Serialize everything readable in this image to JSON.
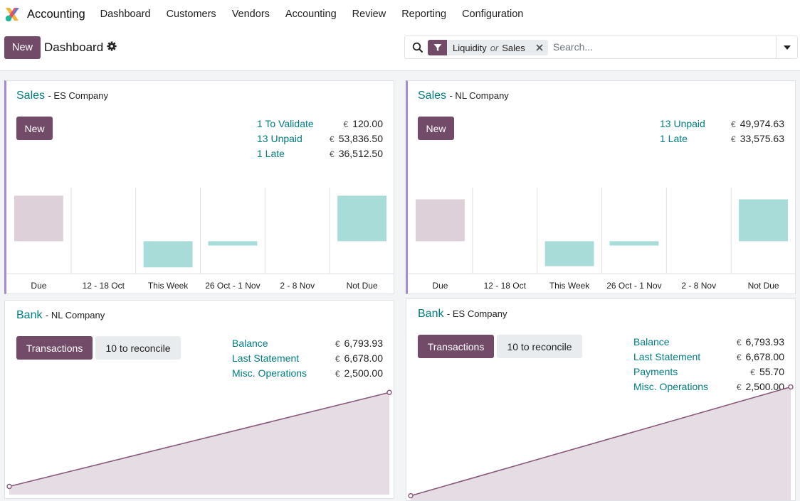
{
  "app": {
    "title": "Accounting",
    "menu": [
      "Dashboard",
      "Customers",
      "Vendors",
      "Accounting",
      "Review",
      "Reporting",
      "Configuration"
    ]
  },
  "control": {
    "new_label": "New",
    "page_title": "Dashboard",
    "search": {
      "facet_values": [
        "Liquidity",
        "Sales"
      ],
      "facet_separator": "or",
      "placeholder": "Search..."
    }
  },
  "colors": {
    "brand": "#714b67",
    "link": "#017e84",
    "accent_border": "#a58ad8",
    "bar_past": "#ddd0d8",
    "bar_future": "#a8dcd8",
    "line": "#875a7b",
    "area": "#e6dde4"
  },
  "cards": {
    "sales_es": {
      "title": "Sales",
      "company": "- ES Company",
      "button": "New",
      "stats": [
        {
          "label": "1 To Validate",
          "currency": "€",
          "value": "120.00"
        },
        {
          "label": "13 Unpaid",
          "currency": "€",
          "value": "53,836.50"
        },
        {
          "label": "1 Late",
          "currency": "€",
          "value": "36,512.50"
        }
      ]
    },
    "sales_nl": {
      "title": "Sales",
      "company": "- NL Company",
      "button": "New",
      "stats": [
        {
          "label": "13 Unpaid",
          "currency": "€",
          "value": "49,974.63"
        },
        {
          "label": "1 Late",
          "currency": "€",
          "value": "33,575.63"
        }
      ]
    },
    "bank_nl": {
      "title": "Bank",
      "company": "- NL Company",
      "primary_button": "Transactions",
      "secondary_button": "10 to reconcile",
      "stats": [
        {
          "label": "Balance",
          "currency": "€",
          "value": "6,793.93"
        },
        {
          "label": "Last Statement",
          "currency": "€",
          "value": "6,678.00"
        },
        {
          "label": "Misc. Operations",
          "currency": "€",
          "value": "2,500.00"
        }
      ]
    },
    "bank_es": {
      "title": "Bank",
      "company": "- ES Company",
      "primary_button": "Transactions",
      "secondary_button": "10 to reconcile",
      "stats": [
        {
          "label": "Balance",
          "currency": "€",
          "value": "6,793.93"
        },
        {
          "label": "Last Statement",
          "currency": "€",
          "value": "6,678.00"
        },
        {
          "label": "Payments",
          "currency": "€",
          "value": "55.70"
        },
        {
          "label": "Misc. Operations",
          "currency": "€",
          "value": "2,500.00"
        }
      ]
    }
  },
  "chart_data": [
    {
      "type": "bar",
      "title": "Sales - ES Company",
      "categories": [
        "Due",
        "12 - 18 Oct",
        "This Week",
        "26 Oct - 1 Nov",
        "2 - 8 Nov",
        "Not Due"
      ],
      "values": [
        36512.5,
        0,
        -21000,
        -3500,
        0,
        36512.5
      ],
      "ylim": [
        -26000,
        43000
      ]
    },
    {
      "type": "bar",
      "title": "Sales - NL Company",
      "categories": [
        "Due",
        "12 - 18 Oct",
        "This Week",
        "26 Oct - 1 Nov",
        "2 - 8 Nov",
        "Not Due"
      ],
      "values": [
        33575.63,
        0,
        -20000,
        -3500,
        0,
        33575.63
      ],
      "ylim": [
        -26000,
        43000
      ]
    },
    {
      "type": "area",
      "title": "Bank - NL Company",
      "x": [
        0,
        1
      ],
      "values": [
        200,
        2500
      ],
      "ylim": [
        0,
        2800
      ]
    },
    {
      "type": "area",
      "title": "Bank - ES Company",
      "x": [
        0,
        1
      ],
      "values": [
        100,
        2500
      ],
      "ylim": [
        0,
        2680
      ]
    }
  ]
}
